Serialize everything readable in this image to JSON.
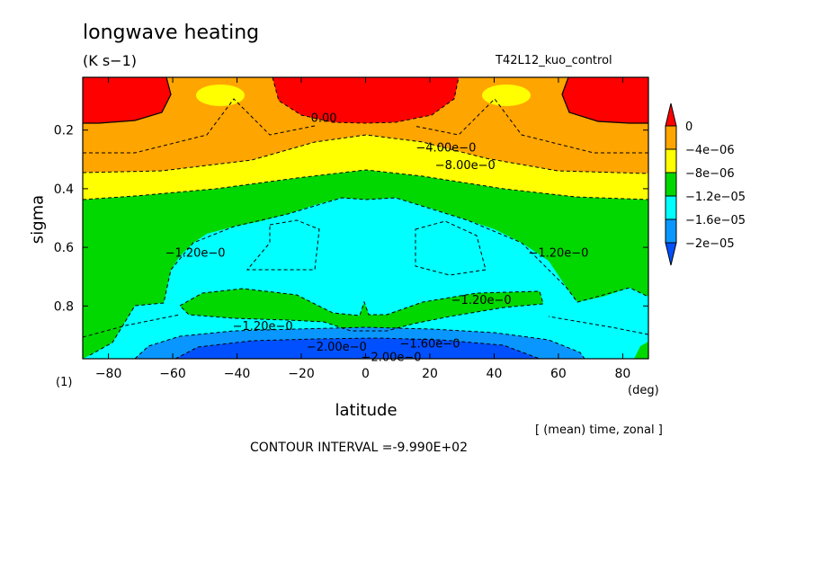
{
  "chart_data": {
    "type": "heatmap",
    "title": "longwave heating",
    "units": "(K s−1)",
    "run_label": "T42L12_kuo_control",
    "xlabel": "latitude",
    "x_unit": "(deg)",
    "ylabel": "sigma",
    "bottom_label": "(1)",
    "xlim": [
      -88,
      88
    ],
    "ylim": [
      0.02,
      0.98
    ],
    "x_ticks": [
      -80,
      -60,
      -40,
      -20,
      0,
      20,
      40,
      60,
      80
    ],
    "x_ticklabels": [
      "−80",
      "−60",
      "−40",
      "−20",
      "0",
      "20",
      "40",
      "60",
      "80"
    ],
    "y_ticks": [
      0.2,
      0.4,
      0.6,
      0.8
    ],
    "y_ticklabels": [
      "0.2",
      "0.4",
      "0.6",
      "0.8"
    ],
    "averaging_note": "[ (mean) time, zonal ]",
    "contour_interval_text": "CONTOUR INTERVAL =-9.990E+02",
    "colorbar": {
      "labels": [
        "0",
        "−4e−06",
        "−8e−06",
        "−1.2e−05",
        "−1.6e−05",
        "−2e−05"
      ],
      "colors": [
        "#ff0000",
        "#ffa500",
        "#ffff00",
        "#00d800",
        "#00ffff",
        "#0a96ff",
        "#0050ff"
      ]
    },
    "contour_labels": [
      {
        "text": "0.00",
        "x": -13,
        "y": 0.16
      },
      {
        "text": "−4.00e−0",
        "x": 25,
        "y": 0.26
      },
      {
        "text": "−8.00e−0",
        "x": 31,
        "y": 0.32
      },
      {
        "text": "−1.20e−0",
        "x": -53,
        "y": 0.62
      },
      {
        "text": "−1.20e−0",
        "x": 60,
        "y": 0.62
      },
      {
        "text": "−1.20e−0",
        "x": 36,
        "y": 0.78
      },
      {
        "text": "−1.20e−0",
        "x": -32,
        "y": 0.87
      },
      {
        "text": "−2.00e−0",
        "x": -9,
        "y": 0.94
      },
      {
        "text": "−1.60e−0",
        "x": 20,
        "y": 0.93
      },
      {
        "text": "−2.00e−0",
        "x": 8,
        "y": 0.975
      }
    ]
  }
}
